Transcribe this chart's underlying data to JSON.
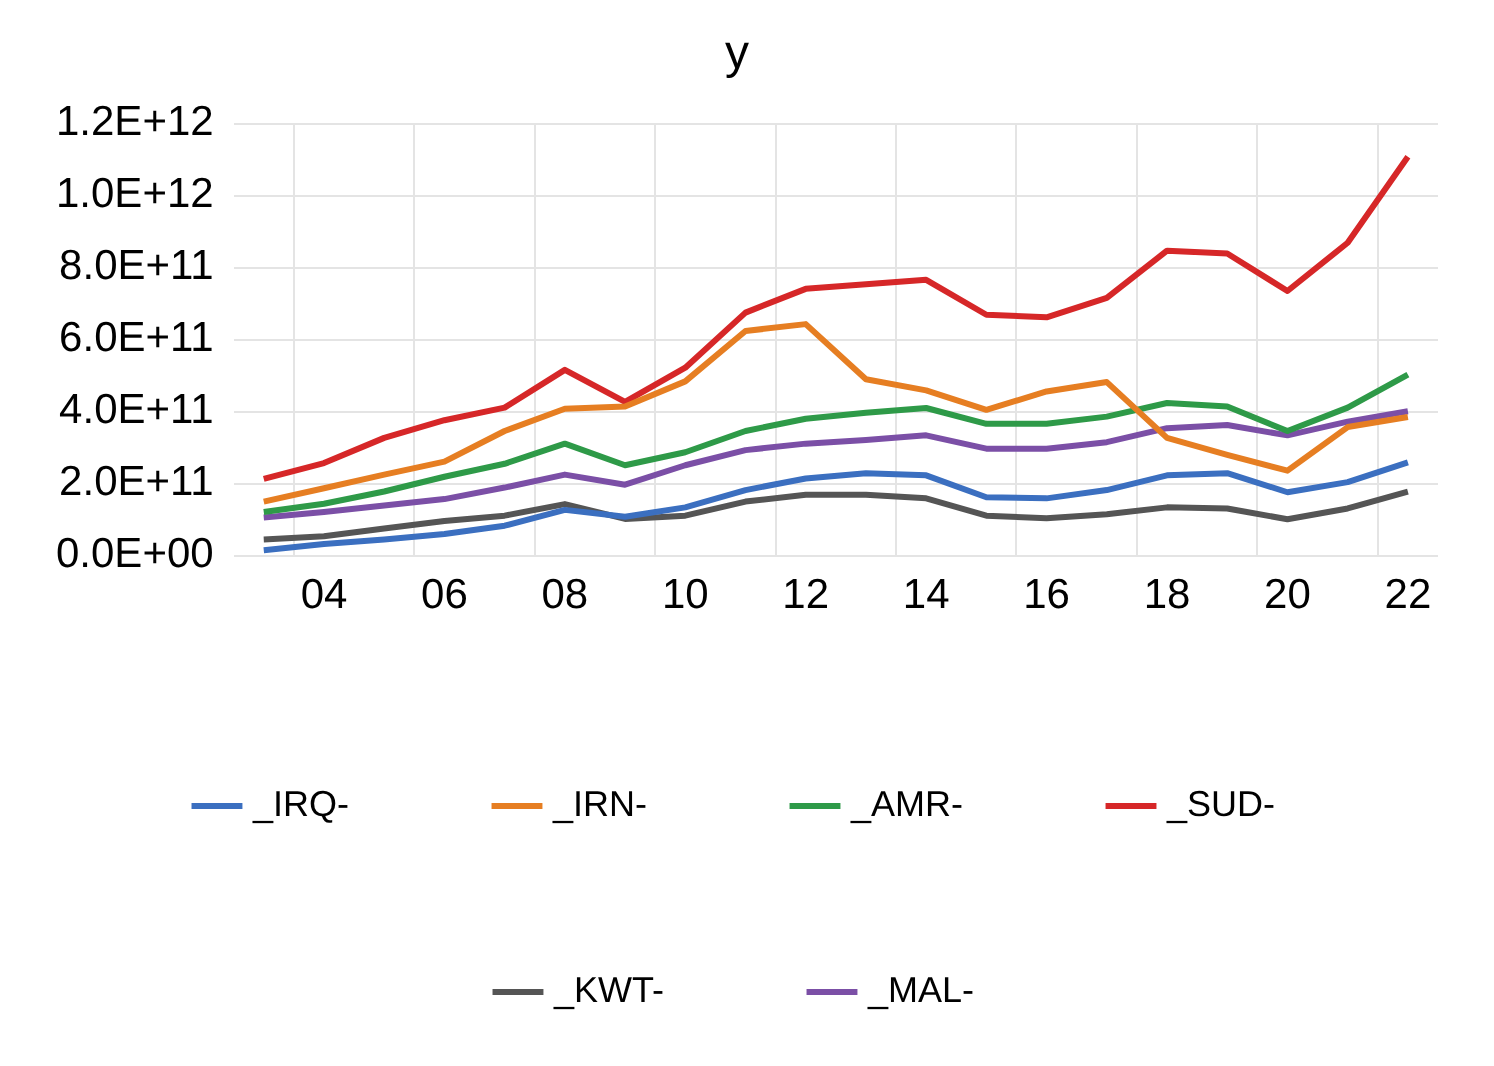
{
  "chart_data": {
    "type": "line",
    "title": "y",
    "categories": [
      null,
      "04",
      null,
      "06",
      null,
      "08",
      null,
      "10",
      null,
      "12",
      null,
      "14",
      null,
      "16",
      null,
      "18",
      null,
      "20",
      null,
      "22"
    ],
    "series": [
      {
        "name": "_IRQ-",
        "color": "#3b6fc0",
        "values": [
          15000000000.0,
          32000000000.0,
          45000000000.0,
          60000000000.0,
          83000000000.0,
          127000000000.0,
          108000000000.0,
          134000000000.0,
          182000000000.0,
          214000000000.0,
          229000000000.0,
          223000000000.0,
          162000000000.0,
          159000000000.0,
          182000000000.0,
          223000000000.0,
          229000000000.0,
          176000000000.0,
          204000000000.0,
          259000000000.0
        ]
      },
      {
        "name": "_IRN-",
        "color": "#e67e22",
        "values": [
          150000000000.0,
          187000000000.0,
          225000000000.0,
          261000000000.0,
          346000000000.0,
          408000000000.0,
          414000000000.0,
          484000000000.0,
          624000000000.0,
          643000000000.0,
          490000000000.0,
          459000000000.0,
          405000000000.0,
          456000000000.0,
          482000000000.0,
          327000000000.0,
          280000000000.0,
          236000000000.0,
          357000000000.0,
          385000000000.0
        ]
      },
      {
        "name": "_AMR-",
        "color": "#2e9a48",
        "values": [
          121000000000.0,
          144000000000.0,
          178000000000.0,
          219000000000.0,
          255000000000.0,
          311000000000.0,
          251000000000.0,
          287000000000.0,
          346000000000.0,
          380000000000.0,
          397000000000.0,
          410000000000.0,
          366000000000.0,
          366000000000.0,
          386000000000.0,
          424000000000.0,
          414000000000.0,
          346000000000.0,
          411000000000.0,
          503000000000.0
        ]
      },
      {
        "name": "_SUD-",
        "color": "#d62728",
        "values": [
          213000000000.0,
          257000000000.0,
          327000000000.0,
          376000000000.0,
          411000000000.0,
          516000000000.0,
          427000000000.0,
          522000000000.0,
          675000000000.0,
          741000000000.0,
          754000000000.0,
          766000000000.0,
          669000000000.0,
          662000000000.0,
          716000000000.0,
          847000000000.0,
          839000000000.0,
          735000000000.0,
          869000000000.0,
          1108000000000.0
        ]
      },
      {
        "name": "_KWT-",
        "color": "#555555",
        "values": [
          45000000000.0,
          54000000000.0,
          75000000000.0,
          96000000000.0,
          111000000000.0,
          143000000000.0,
          102000000000.0,
          111000000000.0,
          150000000000.0,
          169000000000.0,
          169000000000.0,
          159000000000.0,
          111000000000.0,
          104000000000.0,
          115000000000.0,
          134000000000.0,
          131000000000.0,
          101000000000.0,
          131000000000.0,
          178000000000.0
        ]
      },
      {
        "name": "_MAL-",
        "color": "#7b4fa6",
        "values": [
          106000000000.0,
          121000000000.0,
          139000000000.0,
          157000000000.0,
          189000000000.0,
          225000000000.0,
          197000000000.0,
          251000000000.0,
          293000000000.0,
          311000000000.0,
          321000000000.0,
          334000000000.0,
          297000000000.0,
          297000000000.0,
          315000000000.0,
          354000000000.0,
          363000000000.0,
          334000000000.0,
          372000000000.0,
          401000000000.0
        ]
      }
    ],
    "ylim": [
      0,
      1200000000000.0
    ],
    "yticks": [
      {
        "value": 0,
        "label": "0.0E+00"
      },
      {
        "value": 200000000000.0,
        "label": "2.0E+11"
      },
      {
        "value": 400000000000.0,
        "label": "4.0E+11"
      },
      {
        "value": 600000000000.0,
        "label": "6.0E+11"
      },
      {
        "value": 800000000000.0,
        "label": "8.0E+11"
      },
      {
        "value": 1000000000000.0,
        "label": "1.0E+12"
      },
      {
        "value": 1200000000000.0,
        "label": "1.2E+12"
      }
    ],
    "grid": true,
    "legend": "bottom",
    "marker": "none",
    "line_style": "solid"
  }
}
